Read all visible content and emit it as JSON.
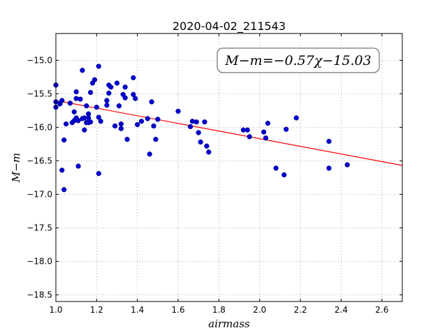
{
  "chart_data": {
    "type": "scatter",
    "title": "2020-04-02_211543",
    "xlabel": "airmass",
    "ylabel": "M−m",
    "xlim": [
      1.0,
      2.7
    ],
    "ylim": [
      -18.6,
      -14.6
    ],
    "xticks": [
      "1.0",
      "1.2",
      "1.4",
      "1.6",
      "1.8",
      "2.0",
      "2.2",
      "2.4",
      "2.6"
    ],
    "yticks": [
      "−15.0",
      "−15.5",
      "−16.0",
      "−16.5",
      "−17.0",
      "−17.5",
      "−18.0",
      "−18.5"
    ],
    "grid": true,
    "annotation": "M−m=−0.57χ−15.03",
    "annotation_position": "top-right",
    "fit_line": {
      "slope": -0.57,
      "intercept": -15.03,
      "color": "#ff0000"
    },
    "point_color": "#0000cc",
    "points": [
      [
        1.0,
        -15.37
      ],
      [
        1.0,
        -15.62
      ],
      [
        1.0,
        -15.7
      ],
      [
        1.02,
        -15.65
      ],
      [
        1.03,
        -15.6
      ],
      [
        1.03,
        -16.64
      ],
      [
        1.04,
        -16.19
      ],
      [
        1.04,
        -16.93
      ],
      [
        1.05,
        -15.95
      ],
      [
        1.07,
        -15.64
      ],
      [
        1.08,
        -15.93
      ],
      [
        1.09,
        -15.77
      ],
      [
        1.09,
        -15.9
      ],
      [
        1.1,
        -15.47
      ],
      [
        1.1,
        -15.57
      ],
      [
        1.1,
        -15.86
      ],
      [
        1.11,
        -15.9
      ],
      [
        1.11,
        -16.58
      ],
      [
        1.12,
        -15.58
      ],
      [
        1.13,
        -15.15
      ],
      [
        1.13,
        -15.87
      ],
      [
        1.14,
        -15.86
      ],
      [
        1.14,
        -16.04
      ],
      [
        1.15,
        -15.68
      ],
      [
        1.15,
        -15.93
      ],
      [
        1.16,
        -15.8
      ],
      [
        1.16,
        -15.86
      ],
      [
        1.16,
        -15.93
      ],
      [
        1.17,
        -15.48
      ],
      [
        1.17,
        -15.92
      ],
      [
        1.18,
        -15.34
      ],
      [
        1.19,
        -15.29
      ],
      [
        1.2,
        -15.7
      ],
      [
        1.21,
        -16.69
      ],
      [
        1.21,
        -15.09
      ],
      [
        1.21,
        -15.85
      ],
      [
        1.22,
        -15.91
      ],
      [
        1.25,
        -15.6
      ],
      [
        1.25,
        -15.67
      ],
      [
        1.26,
        -15.37
      ],
      [
        1.26,
        -15.49
      ],
      [
        1.27,
        -15.4
      ],
      [
        1.29,
        -15.98
      ],
      [
        1.3,
        -15.34
      ],
      [
        1.31,
        -15.68
      ],
      [
        1.32,
        -16.02
      ],
      [
        1.32,
        -15.95
      ],
      [
        1.33,
        -15.51
      ],
      [
        1.34,
        -15.4
      ],
      [
        1.34,
        -15.56
      ],
      [
        1.35,
        -16.18
      ],
      [
        1.38,
        -15.26
      ],
      [
        1.38,
        -15.51
      ],
      [
        1.39,
        -15.57
      ],
      [
        1.4,
        -15.96
      ],
      [
        1.42,
        -15.91
      ],
      [
        1.45,
        -15.87
      ],
      [
        1.46,
        -16.4
      ],
      [
        1.47,
        -15.62
      ],
      [
        1.48,
        -15.98
      ],
      [
        1.49,
        -16.18
      ],
      [
        1.5,
        -15.88
      ],
      [
        1.6,
        -15.76
      ],
      [
        1.66,
        -15.99
      ],
      [
        1.67,
        -15.91
      ],
      [
        1.69,
        -15.92
      ],
      [
        1.7,
        -16.08
      ],
      [
        1.71,
        -16.22
      ],
      [
        1.73,
        -15.92
      ],
      [
        1.74,
        -16.28
      ],
      [
        1.75,
        -16.37
      ],
      [
        1.92,
        -16.04
      ],
      [
        1.94,
        -16.04
      ],
      [
        1.95,
        -16.14
      ],
      [
        2.02,
        -16.07
      ],
      [
        2.03,
        -16.16
      ],
      [
        2.04,
        -15.94
      ],
      [
        2.08,
        -16.61
      ],
      [
        2.12,
        -16.71
      ],
      [
        2.13,
        -16.03
      ],
      [
        2.18,
        -15.86
      ],
      [
        2.34,
        -16.21
      ],
      [
        2.34,
        -16.61
      ],
      [
        2.43,
        -16.56
      ]
    ]
  }
}
